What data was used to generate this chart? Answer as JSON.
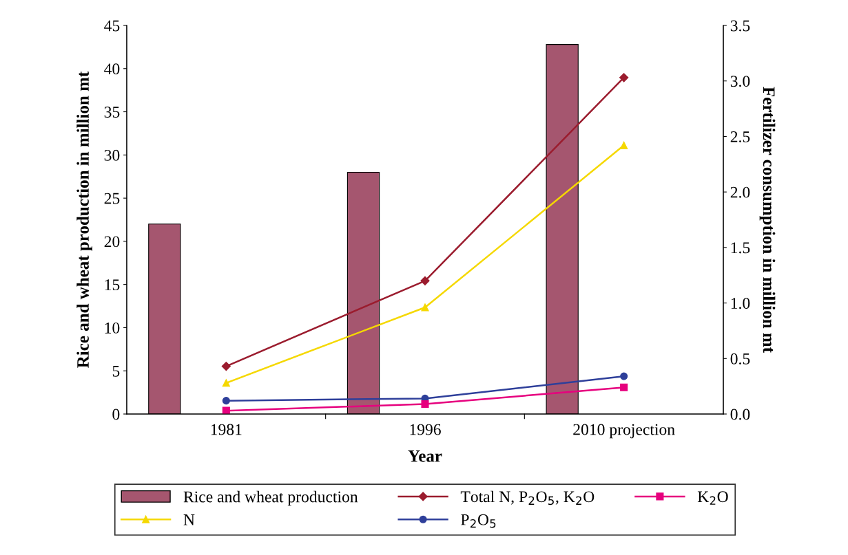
{
  "chart_data": {
    "type": "bar",
    "xlabel": "Year",
    "ylabel": "Rice and wheat production in million mt",
    "y2label": "Fertilizer consumption in million mt",
    "categories": [
      "1981",
      "1996",
      "2010 projection"
    ],
    "series": [
      {
        "name": "Rice and wheat production",
        "color": "#a5566f",
        "values": [
          22,
          28,
          42.8
        ]
      },
      {
        "name": "Total N, P$_{2}$O$_{5}$, K$_{2}$O",
        "type": "line",
        "axis": "y2",
        "marker": "diamond",
        "color": "#9b1c2e",
        "values": [
          0.43,
          1.2,
          3.03
        ]
      },
      {
        "name": "N",
        "type": "line",
        "axis": "y2",
        "marker": "triangle",
        "color": "#f5d800",
        "values": [
          0.28,
          0.96,
          2.42
        ]
      },
      {
        "name": "P$_{2}$O$_{5}$",
        "type": "line",
        "axis": "y2",
        "marker": "circle",
        "color": "#2e3f9a",
        "values": [
          0.12,
          0.14,
          0.34
        ]
      },
      {
        "name": "K$_{2}$O",
        "type": "line",
        "axis": "y2",
        "marker": "square",
        "color": "#e6007e",
        "values": [
          0.03,
          0.09,
          0.24
        ]
      }
    ],
    "ylim": [
      0,
      45
    ],
    "yticks": [
      0,
      5,
      10,
      15,
      20,
      25,
      30,
      35,
      40,
      45
    ],
    "y2lim": [
      0,
      3.5
    ],
    "y2ticks": [
      {
        "value": 0,
        "label": "0.0"
      },
      {
        "value": 0.5,
        "label": "0.5"
      },
      {
        "value": 1,
        "label": "1.0"
      },
      {
        "value": 1.5,
        "label": "1.5"
      },
      {
        "value": 2,
        "label": "2.0"
      },
      {
        "value": 2.5,
        "label": "2.5"
      },
      {
        "value": 3,
        "label": "3.0"
      },
      {
        "value": 3.5,
        "label": "3.5"
      }
    ],
    "grid": false,
    "legend": "bottom",
    "line_style": "solid"
  }
}
